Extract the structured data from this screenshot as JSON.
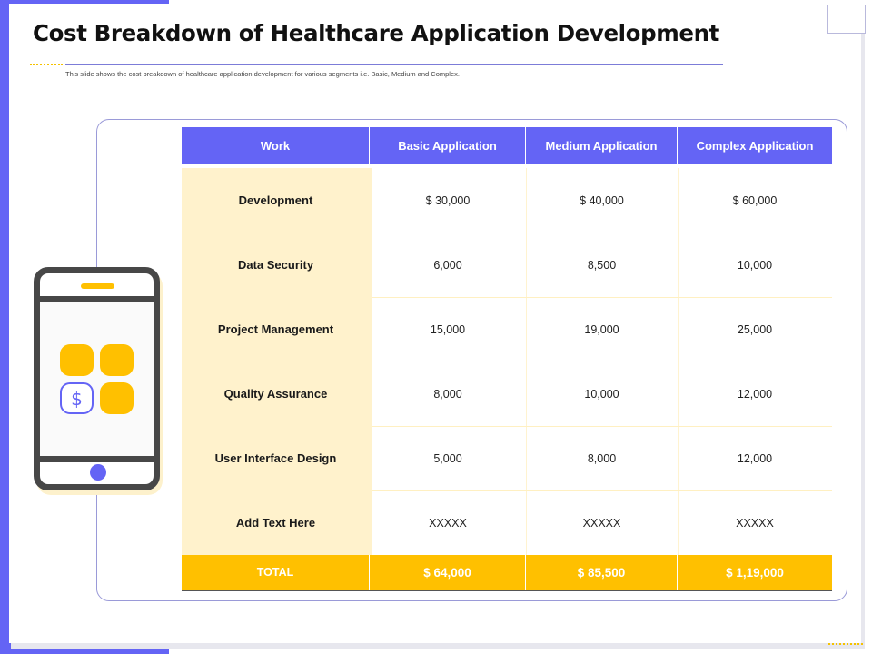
{
  "slide": {
    "title": "Cost Breakdown of Healthcare Application Development",
    "subtitle": "This slide shows the cost breakdown of healthcare application development  for various segments  i.e. Basic, Medium and Complex."
  },
  "phone": {
    "tile_icon": "dollar-sign-icon",
    "tile_symbol": "$"
  },
  "table": {
    "headers": [
      "Work",
      "Basic Application",
      "Medium Application",
      "Complex Application"
    ],
    "rows": [
      [
        "Development",
        "$ 30,000",
        "$ 40,000",
        "$ 60,000"
      ],
      [
        "Data Security",
        "6,000",
        "8,500",
        "10,000"
      ],
      [
        "Project Management",
        "15,000",
        "19,000",
        "25,000"
      ],
      [
        "Quality Assurance",
        "8,000",
        "10,000",
        "12,000"
      ],
      [
        "User Interface Design",
        "5,000",
        "8,000",
        "12,000"
      ],
      [
        "Add Text Here",
        "XXXXX",
        "XXXXX",
        "XXXXX"
      ]
    ],
    "total": [
      "TOTAL",
      "$ 64,000",
      "$ 85,500",
      "$ 1,19,000"
    ]
  },
  "colors": {
    "accent": "#6464f5",
    "highlight": "#ffc000",
    "work_column": "#fff2cc",
    "phone_body": "#474747"
  }
}
